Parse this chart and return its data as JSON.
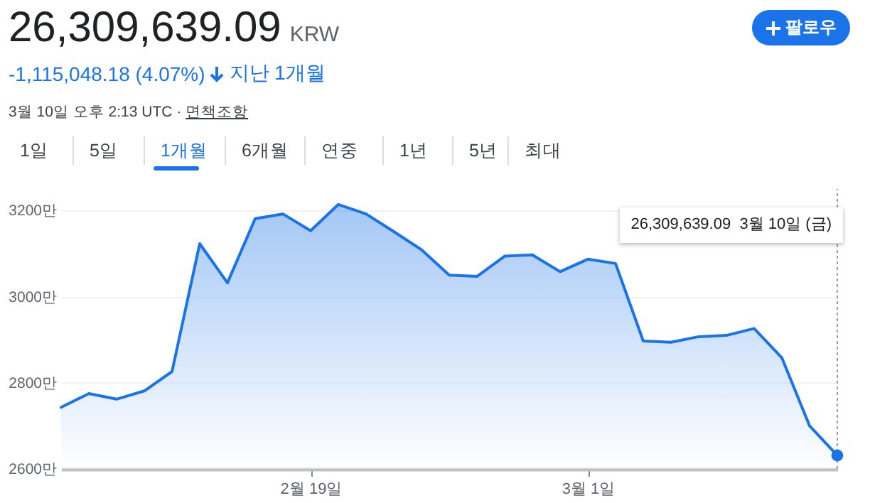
{
  "chart_data": {
    "type": "area",
    "title": "26,309,639.09",
    "x": [
      "--02-10",
      "--02-11",
      "--02-12",
      "--02-13",
      "--02-14",
      "--02-15",
      "--02-16",
      "--02-17",
      "--02-18",
      "--02-19",
      "--02-20",
      "--02-21",
      "--02-22",
      "--02-23",
      "--02-24",
      "--02-25",
      "--02-26",
      "--02-27",
      "--02-28",
      "--03-01",
      "--03-02",
      "--03-03",
      "--03-04",
      "--03-05",
      "--03-06",
      "--03-07",
      "--03-08",
      "--03-09",
      "--03-10"
    ],
    "series": [
      {
        "color": "#1a73e8",
        "values": [
          2743,
          2775,
          2762,
          2781,
          2826,
          3123,
          3032,
          3181,
          3192,
          3153,
          3214,
          3192,
          3151,
          3109,
          3050,
          3047,
          3094,
          3097,
          3058,
          3087,
          3077,
          2897,
          2894,
          2907,
          2910,
          2926,
          2858,
          2700,
          2631
        ]
      }
    ],
    "xlim": [
      "--02-10",
      "--03-10"
    ],
    "xticks": [
      {
        "value": "--02-19",
        "label": "2월 19일"
      },
      {
        "value": "--03-01",
        "label": "3월 1일"
      }
    ],
    "ylim": [
      2600,
      3250
    ],
    "yticks": [
      {
        "value": 2600,
        "label": "2600만"
      },
      {
        "value": 2800,
        "label": "2800만"
      },
      {
        "value": 3000,
        "label": "3000만"
      },
      {
        "value": 3200,
        "label": "3200만"
      }
    ],
    "grid": "y",
    "marker": "none",
    "annotations": [
      "KRW",
      "-1,115,048.18 (4.07%)",
      "지난 1개월",
      "3월 10일 오후 2:13 UTC · ",
      "면책조항",
      "1일",
      "5일",
      "1개월",
      "6개월",
      "연중",
      "1년",
      "5년",
      "최대",
      "팔로우",
      "26,309,639.09  3월 10일 (금)"
    ]
  }
}
